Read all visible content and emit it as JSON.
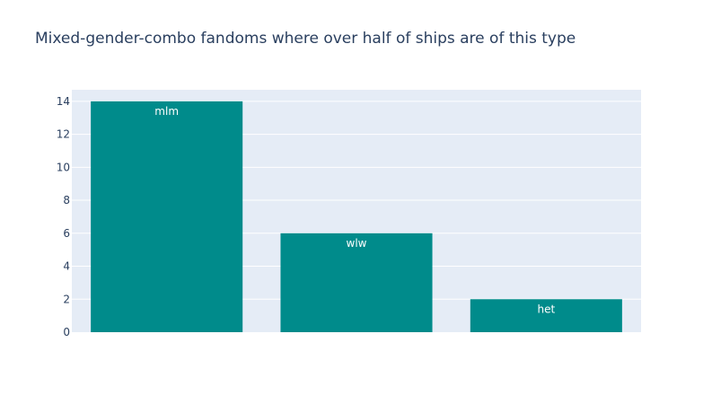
{
  "chart_data": {
    "type": "bar",
    "title": "Mixed-gender-combo fandoms where over half of ships are of this type",
    "categories": [
      "mlm",
      "wlw",
      "het"
    ],
    "values": [
      14,
      6,
      2
    ],
    "xlabel": "",
    "ylabel": "",
    "ylim": [
      0,
      14.7
    ],
    "yticks": [
      0,
      2,
      4,
      6,
      8,
      10,
      12,
      14
    ],
    "grid": true,
    "bar_color": "#008b8b",
    "plot_background": "#e5ecf6",
    "text_position": "inside-top"
  }
}
